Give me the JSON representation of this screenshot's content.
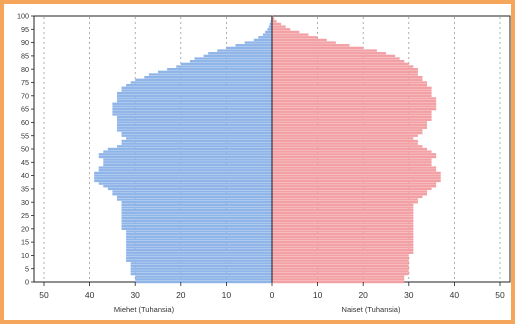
{
  "chart_data": {
    "type": "bar",
    "orientation": "horizontal-pyramid",
    "xlim": [
      -50,
      50
    ],
    "ylim": [
      0,
      100
    ],
    "x_ticks": [
      "50",
      "40",
      "30",
      "20",
      "10",
      "0",
      "10",
      "20",
      "30",
      "40",
      "50"
    ],
    "y_ticks": [
      "0",
      "5",
      "10",
      "15",
      "20",
      "25",
      "30",
      "35",
      "40",
      "45",
      "50",
      "55",
      "60",
      "65",
      "70",
      "75",
      "80",
      "85",
      "90",
      "95",
      "100"
    ],
    "xlabel_left": "Miehet (Tuhansia)",
    "xlabel_right": "Naiset (Tuhansia)",
    "grid": true,
    "age_step": 1,
    "series": [
      {
        "name": "Miehet (Tuhansia)",
        "color": "#8fb4e8",
        "values": [
          30,
          30,
          30,
          31,
          31,
          31,
          31,
          31,
          32,
          32,
          32,
          32,
          32,
          32,
          32,
          32,
          32,
          32,
          32,
          32,
          33,
          33,
          33,
          33,
          33,
          33,
          33,
          33,
          33,
          33,
          33,
          34,
          34,
          35,
          35,
          36,
          37,
          38,
          39,
          39,
          39,
          39,
          38,
          38,
          37,
          37,
          37,
          38,
          38,
          37,
          36,
          34,
          33,
          33,
          32,
          33,
          33,
          34,
          34,
          34,
          34,
          34,
          34,
          35,
          35,
          35,
          35,
          35,
          34,
          34,
          34,
          34,
          33,
          33,
          32,
          31,
          30,
          28,
          27,
          25,
          23,
          21,
          20,
          18,
          17,
          15,
          14,
          12,
          10,
          8,
          6,
          4,
          3,
          2,
          1.5,
          1,
          0.7,
          0.5,
          0.3,
          0.2,
          0.1
        ]
      },
      {
        "name": "Naiset (Tuhansia)",
        "color": "#f2a0a4",
        "values": [
          29,
          29,
          29,
          30,
          30,
          30,
          30,
          30,
          30,
          30,
          30,
          31,
          31,
          31,
          31,
          31,
          31,
          31,
          31,
          31,
          31,
          31,
          31,
          31,
          31,
          31,
          31,
          31,
          31,
          31,
          32,
          32,
          33,
          34,
          34,
          35,
          36,
          36,
          37,
          37,
          37,
          37,
          36,
          36,
          35,
          35,
          35,
          36,
          36,
          35,
          34,
          33,
          32,
          32,
          31,
          32,
          33,
          33,
          34,
          34,
          34,
          35,
          35,
          35,
          35,
          36,
          36,
          36,
          36,
          36,
          35,
          35,
          35,
          35,
          34,
          34,
          33,
          33,
          32,
          32,
          32,
          31,
          30,
          29,
          28,
          27,
          25,
          23,
          20,
          17,
          14,
          12,
          10,
          8,
          6,
          4,
          3,
          2,
          1,
          0.5,
          0.2
        ]
      }
    ]
  }
}
